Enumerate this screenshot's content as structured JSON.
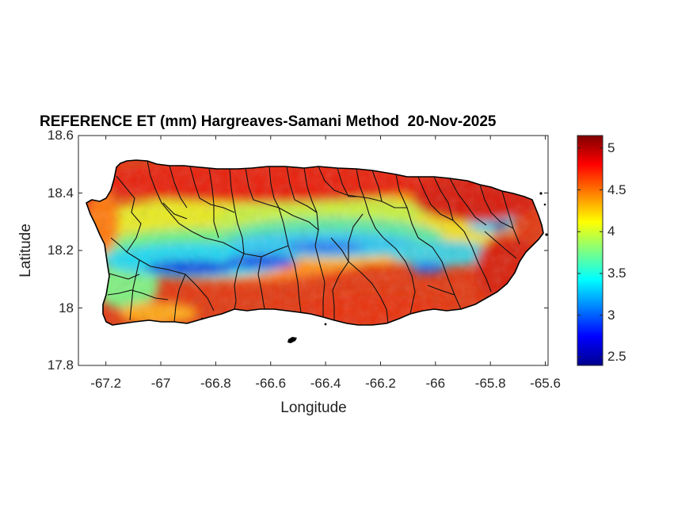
{
  "figure": {
    "title": "REFERENCE ET (mm) Hargreaves-Samani Method  20-Nov-2025",
    "xlabel": "Longitude",
    "ylabel": "Latitude"
  },
  "axes": {
    "xlim": [
      -67.3,
      -65.59
    ],
    "ylim": [
      17.8,
      18.6
    ],
    "xticks": [
      "-67.2",
      "-67",
      "-66.8",
      "-66.6",
      "-66.4",
      "-66.2",
      "-66",
      "-65.8",
      "-65.6"
    ],
    "xtick_values": [
      -67.2,
      -67.0,
      -66.8,
      -66.6,
      -66.4,
      -66.2,
      -66.0,
      -65.8,
      -65.6
    ],
    "yticks": [
      "18.6",
      "18.4",
      "18.2",
      "18",
      "17.8"
    ],
    "ytick_values": [
      18.6,
      18.4,
      18.2,
      18.0,
      17.8
    ]
  },
  "colorbar": {
    "range": [
      2.4,
      5.15
    ],
    "ticks": [
      "5",
      "4.5",
      "4",
      "3.5",
      "3",
      "2.5"
    ],
    "tick_values": [
      5,
      4.5,
      4,
      3.5,
      3,
      2.5
    ],
    "colormap": "jet"
  },
  "map": {
    "region": "Puerto Rico",
    "variable": "Reference ET (mm)",
    "coast_color": "#000000"
  }
}
